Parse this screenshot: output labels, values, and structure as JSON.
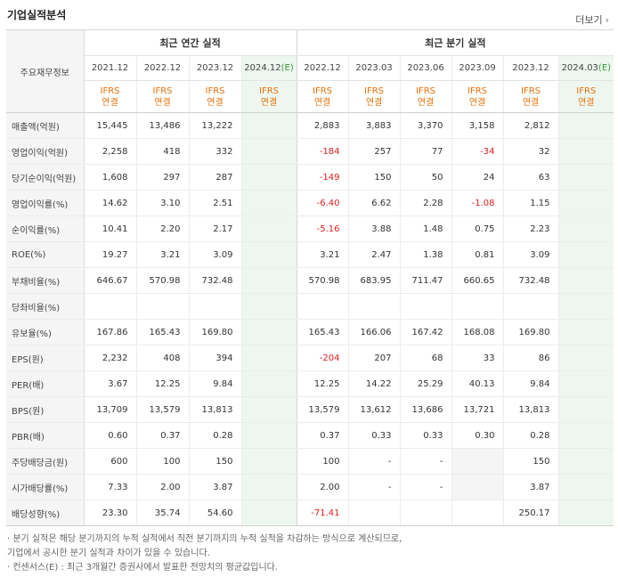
{
  "header": {
    "title": "기업실적분석",
    "more_label": "더보기",
    "more_arrow": "›"
  },
  "table": {
    "label_column": "주요재무정보",
    "annual_group": "최근 연간 실적",
    "quarter_group": "최근 분기 실적",
    "annual_periods": [
      {
        "period": "2021.12",
        "est": ""
      },
      {
        "period": "2022.12",
        "est": ""
      },
      {
        "period": "2023.12",
        "est": ""
      },
      {
        "period": "2024.12",
        "est": "(E)"
      }
    ],
    "quarter_periods": [
      {
        "period": "2022.12",
        "est": ""
      },
      {
        "period": "2023.03",
        "est": ""
      },
      {
        "period": "2023.06",
        "est": ""
      },
      {
        "period": "2023.09",
        "est": ""
      },
      {
        "period": "2023.12",
        "est": ""
      },
      {
        "period": "2024.03",
        "est": "(E)"
      }
    ],
    "ifrs_line1": "IFRS",
    "ifrs_line2": "연결",
    "rows": [
      {
        "label": "매출액(억원)",
        "annual": [
          "15,445",
          "13,486",
          "13,222",
          ""
        ],
        "quarter": [
          "2,883",
          "3,883",
          "3,370",
          "3,158",
          "2,812",
          ""
        ]
      },
      {
        "label": "영업이익(억원)",
        "annual": [
          "2,258",
          "418",
          "332",
          ""
        ],
        "quarter": [
          "-184",
          "257",
          "77",
          "-34",
          "32",
          ""
        ]
      },
      {
        "label": "당기순이익(억원)",
        "annual": [
          "1,608",
          "297",
          "287",
          ""
        ],
        "quarter": [
          "-149",
          "150",
          "50",
          "24",
          "63",
          ""
        ]
      },
      {
        "label": "영업이익률(%)",
        "annual": [
          "14.62",
          "3.10",
          "2.51",
          ""
        ],
        "quarter": [
          "-6.40",
          "6.62",
          "2.28",
          "-1.08",
          "1.15",
          ""
        ]
      },
      {
        "label": "순이익률(%)",
        "annual": [
          "10.41",
          "2.20",
          "2.17",
          ""
        ],
        "quarter": [
          "-5.16",
          "3.88",
          "1.48",
          "0.75",
          "2.23",
          ""
        ]
      },
      {
        "label": "ROE(%)",
        "annual": [
          "19.27",
          "3.21",
          "3.09",
          ""
        ],
        "quarter": [
          "3.21",
          "2.47",
          "1.38",
          "0.81",
          "3.09",
          ""
        ]
      },
      {
        "label": "부채비율(%)",
        "annual": [
          "646.67",
          "570.98",
          "732.48",
          ""
        ],
        "quarter": [
          "570.98",
          "683.95",
          "711.47",
          "660.65",
          "732.48",
          ""
        ]
      },
      {
        "label": "당좌비율(%)",
        "annual": [
          "",
          "",
          "",
          ""
        ],
        "quarter": [
          "",
          "",
          "",
          "",
          "",
          ""
        ]
      },
      {
        "label": "유보율(%)",
        "annual": [
          "167.86",
          "165.43",
          "169.80",
          ""
        ],
        "quarter": [
          "165.43",
          "166.06",
          "167.42",
          "168.08",
          "169.80",
          ""
        ]
      },
      {
        "label": "EPS(원)",
        "annual": [
          "2,232",
          "408",
          "394",
          ""
        ],
        "quarter": [
          "-204",
          "207",
          "68",
          "33",
          "86",
          ""
        ]
      },
      {
        "label": "PER(배)",
        "annual": [
          "3.67",
          "12.25",
          "9.84",
          ""
        ],
        "quarter": [
          "12.25",
          "14.22",
          "25.29",
          "40.13",
          "9.84",
          ""
        ]
      },
      {
        "label": "BPS(원)",
        "annual": [
          "13,709",
          "13,579",
          "13,813",
          ""
        ],
        "quarter": [
          "13,579",
          "13,612",
          "13,686",
          "13,721",
          "13,813",
          ""
        ]
      },
      {
        "label": "PBR(배)",
        "annual": [
          "0.60",
          "0.37",
          "0.28",
          ""
        ],
        "quarter": [
          "0.37",
          "0.33",
          "0.33",
          "0.30",
          "0.28",
          ""
        ]
      },
      {
        "label": "주당배당금(원)",
        "annual": [
          "600",
          "100",
          "150",
          ""
        ],
        "quarter": [
          "100",
          "-",
          "-",
          "",
          "150",
          ""
        ]
      },
      {
        "label": "시가배당률(%)",
        "annual": [
          "7.33",
          "2.00",
          "3.87",
          ""
        ],
        "quarter": [
          "2.00",
          "-",
          "-",
          "",
          "3.87",
          ""
        ]
      },
      {
        "label": "배당성향(%)",
        "annual": [
          "23.30",
          "35.74",
          "54.60",
          ""
        ],
        "quarter": [
          "-71.41",
          "",
          "",
          "",
          "250.17",
          ""
        ]
      }
    ]
  },
  "notes": [
    "· 분기 실적은 해당 분기까지의 누적 실적에서 직전 분기까지의 누적 실적을 차감하는 방식으로 계산되므로,",
    "  기업에서 공시한 분기 실적과 차이가 있을 수 있습니다.",
    "· 컨센서스(E) : 최근 3개월간 증권사에서 발표한 전망치의 평균값입니다."
  ]
}
